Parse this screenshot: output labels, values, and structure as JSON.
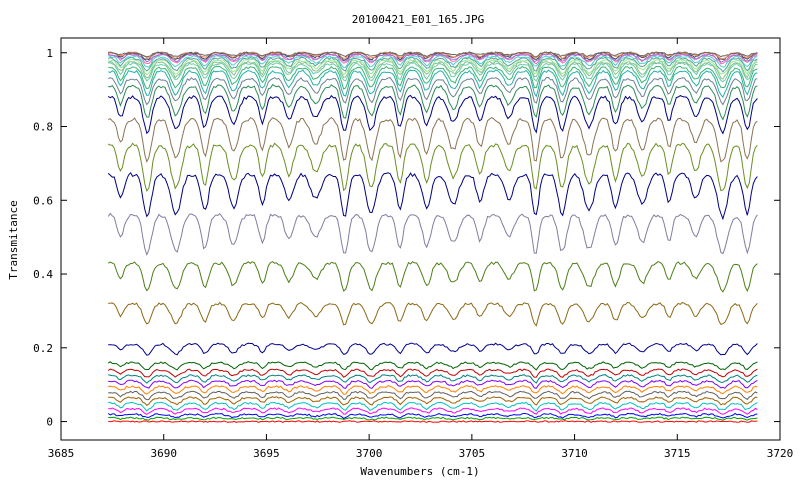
{
  "chart_data": {
    "type": "line",
    "title": "20100421_E01_165.JPG",
    "xlabel": "Wavenumbers (cm-1)",
    "ylabel": "Transmitance",
    "xlim": [
      3685,
      3720
    ],
    "ylim": [
      -0.05,
      1.04
    ],
    "x_ticks": [
      "3685",
      "3690",
      "3695",
      "3700",
      "3705",
      "3710",
      "3715",
      "3720"
    ],
    "x_tick_values": [
      3685,
      3690,
      3695,
      3700,
      3705,
      3710,
      3715,
      3720
    ],
    "y_ticks": [
      "0",
      "0.2",
      "0.4",
      "0.6",
      "0.8",
      "1"
    ],
    "y_tick_values": [
      0,
      0.2,
      0.4,
      0.6,
      0.8,
      1
    ],
    "grid": false,
    "legend": "none",
    "x_range": [
      3687.3,
      3718.9
    ],
    "absorption_lines_x": [
      3687.9,
      3689.2,
      3690.6,
      3692.0,
      3693.4,
      3694.8,
      3696.1,
      3697.4,
      3698.8,
      3700.1,
      3701.5,
      3702.8,
      3704.1,
      3705.4,
      3706.8,
      3708.1,
      3709.4,
      3710.7,
      3712.0,
      3713.3,
      3714.6,
      3715.9,
      3717.2,
      3718.4
    ],
    "series_baseline_minima": [
      0.0,
      0.005,
      0.01,
      0.02,
      0.03,
      0.045,
      0.06,
      0.075,
      0.09,
      0.105,
      0.12,
      0.14,
      0.18,
      0.26,
      0.35,
      0.45,
      0.55,
      0.62,
      0.7,
      0.78,
      0.82,
      0.86,
      0.88,
      0.9,
      0.92,
      0.93,
      0.94,
      0.95,
      0.96,
      0.97,
      0.975,
      0.98,
      0.985,
      0.99
    ],
    "series_baseline_maxima": [
      0.0,
      0.01,
      0.02,
      0.035,
      0.05,
      0.065,
      0.08,
      0.095,
      0.11,
      0.125,
      0.14,
      0.16,
      0.21,
      0.32,
      0.43,
      0.56,
      0.67,
      0.75,
      0.82,
      0.88,
      0.91,
      0.93,
      0.95,
      0.96,
      0.97,
      0.975,
      0.98,
      0.985,
      0.99,
      0.995,
      0.995,
      1.0,
      1.0,
      1.0
    ],
    "series_colors": [
      "#ff0000",
      "#00a000",
      "#0000ff",
      "#ff00ff",
      "#00c0c0",
      "#a06000",
      "#606060",
      "#ff8000",
      "#8000ff",
      "#008080",
      "#c00000",
      "#006000",
      "#00008b",
      "#8b6914",
      "#4d7f17",
      "#7f7f9f",
      "#000080",
      "#6b8e23",
      "#8b7355",
      "#000080",
      "#2e8b57",
      "#708090",
      "#20b2aa",
      "#3cb371",
      "#66cdaa",
      "#8fbc8f",
      "#90ee90",
      "#5f9ea0",
      "#48d1cc",
      "#ff69b4",
      "#9370db",
      "#2f4f4f",
      "#ff7f50",
      "#696969"
    ]
  }
}
